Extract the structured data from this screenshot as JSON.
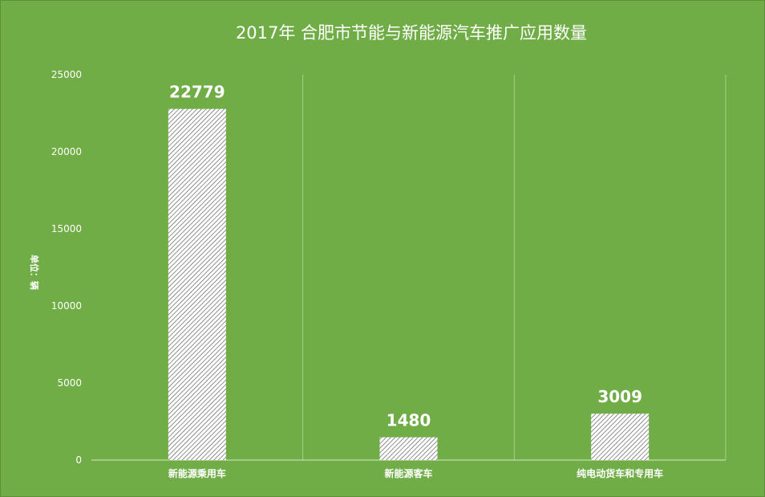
{
  "chart_data": {
    "type": "bar",
    "title": "2017年  合肥市节能与新能源汽车推广应用数量",
    "ylabel": "单位：辆",
    "xlabel": "",
    "categories": [
      "新能源乘用车",
      "新能源客车",
      "纯电动货车和专用车"
    ],
    "values": [
      22779,
      1480,
      3009
    ],
    "data_labels": [
      "22779",
      "1480",
      "3009"
    ],
    "ylim": [
      0,
      25000
    ],
    "yticks": [
      "0",
      "5000",
      "10000",
      "15000",
      "20000",
      "25000"
    ],
    "ytick_values": [
      0,
      5000,
      10000,
      15000,
      20000,
      25000
    ],
    "grid": "vertical separators between categories",
    "legend": "none",
    "colors": {
      "background": "#70ad47",
      "bar_fill": "#ffffff",
      "bar_pattern": "#555555",
      "text": "#ffffff"
    }
  }
}
